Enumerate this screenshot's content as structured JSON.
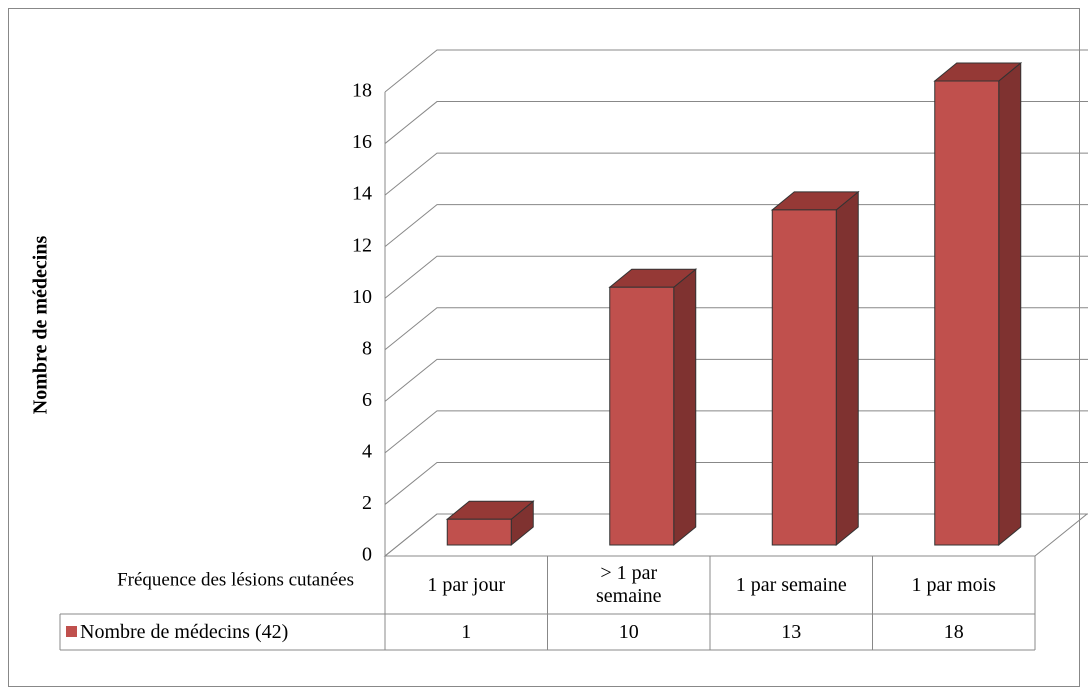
{
  "chart_data": {
    "type": "bar3d",
    "ylabel": "Nombre de médecins",
    "xlabel": "Fréquence des lésions cutanées",
    "categories": [
      "1 par jour",
      "> 1 par semaine",
      "1 par semaine",
      "1 par mois"
    ],
    "series": [
      {
        "name": "Nombre de médecins (42)",
        "color": "#c0504d",
        "values": [
          1,
          10,
          13,
          18
        ]
      }
    ],
    "ylim": [
      0,
      18
    ],
    "yticks": [
      0,
      2,
      4,
      6,
      8,
      10,
      12,
      14,
      16,
      18
    ],
    "grid": true
  }
}
